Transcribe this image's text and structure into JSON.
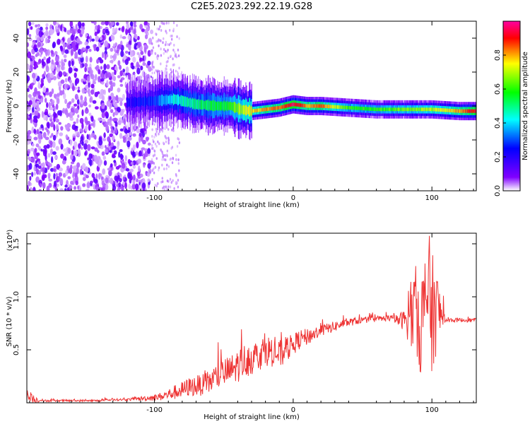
{
  "title": "C2E5.2023.292.22.19.G28",
  "chart_data": [
    {
      "type": "heatmap",
      "xlabel": "Height of straight line (km)",
      "ylabel": "Frequency (Hz)",
      "xlim": [
        -192,
        132
      ],
      "ylim": [
        -50,
        50
      ],
      "x_ticks": [
        -100,
        0,
        100
      ],
      "x_tick_labels": [
        "-100",
        "0",
        "100"
      ],
      "y_ticks": [
        -40,
        -20,
        0,
        20,
        40
      ],
      "y_tick_labels": [
        "-40",
        "-20",
        "0",
        "20",
        "40"
      ],
      "colorbar": {
        "label": "Normalized spectral amplitude",
        "range": [
          0,
          1
        ],
        "ticks": [
          0.0,
          0.2,
          0.4,
          0.6,
          0.8
        ],
        "tick_labels": [
          "0.0",
          "0.2",
          "0.4",
          "0.6",
          "0.8"
        ],
        "colors": [
          "#ffffff",
          "#8000ff",
          "#0000ff",
          "#00ffff",
          "#00ff00",
          "#ffff00",
          "#ff0000",
          "#ff00a0"
        ]
      },
      "ridge": {
        "x": [
          -120,
          -100,
          -85,
          -70,
          -55,
          -45,
          -38,
          -30,
          -20,
          -10,
          0,
          10,
          20,
          40,
          60,
          80,
          100,
          120,
          132
        ],
        "frequency_hz": [
          2,
          3,
          4,
          1,
          0,
          0,
          -2,
          -3,
          -2,
          -1,
          1,
          0,
          0,
          -1,
          -2,
          -2,
          -2,
          -3,
          -3
        ],
        "amplitude": [
          0.2,
          0.3,
          0.45,
          0.5,
          0.55,
          0.6,
          0.7,
          0.75,
          0.8,
          0.85,
          0.95,
          0.8,
          0.85,
          0.6,
          0.6,
          0.65,
          0.7,
          0.8,
          0.95
        ]
      },
      "grid": false
    },
    {
      "type": "line",
      "xlabel": "Height of straight line (km)",
      "ylabel": "SNR (10 * v/v)",
      "y_multiplier": "(x10⁴)",
      "xlim": [
        -192,
        132
      ],
      "ylim": [
        0,
        1.6
      ],
      "x_ticks": [
        -100,
        0,
        100
      ],
      "x_tick_labels": [
        "-100",
        "0",
        "100"
      ],
      "y_ticks": [
        0.5,
        1.0,
        1.5
      ],
      "y_tick_labels": [
        "0.5",
        "1.0",
        "1.5"
      ],
      "series": [
        {
          "color": "#ee3333",
          "x": [
            -192,
            -185,
            -180,
            -170,
            -160,
            -150,
            -140,
            -130,
            -120,
            -110,
            -100,
            -95,
            -90,
            -85,
            -80,
            -75,
            -70,
            -65,
            -60,
            -55,
            -50,
            -45,
            -40,
            -35,
            -30,
            -25,
            -20,
            -15,
            -10,
            -5,
            0,
            5,
            10,
            15,
            20,
            25,
            30,
            35,
            40,
            50,
            60,
            70,
            75,
            80,
            85,
            88,
            90,
            92,
            95,
            97,
            100,
            102,
            105,
            110,
            120,
            132
          ],
          "values": [
            0.05,
            0.03,
            0.02,
            0.02,
            0.02,
            0.02,
            0.02,
            0.03,
            0.03,
            0.04,
            0.05,
            0.06,
            0.08,
            0.1,
            0.12,
            0.15,
            0.16,
            0.17,
            0.2,
            0.25,
            0.28,
            0.3,
            0.35,
            0.4,
            0.42,
            0.45,
            0.5,
            0.48,
            0.45,
            0.5,
            0.55,
            0.6,
            0.62,
            0.65,
            0.68,
            0.7,
            0.72,
            0.74,
            0.76,
            0.78,
            0.79,
            0.8,
            0.78,
            0.78,
            0.8,
            0.9,
            0.85,
            0.7,
            0.9,
            1.1,
            0.8,
            0.9,
            0.85,
            0.78,
            0.78,
            0.78
          ],
          "noise_amplitude": [
            0.05,
            0.03,
            0.01,
            0.01,
            0.01,
            0.01,
            0.01,
            0.01,
            0.01,
            0.02,
            0.03,
            0.04,
            0.05,
            0.07,
            0.08,
            0.09,
            0.1,
            0.1,
            0.12,
            0.13,
            0.14,
            0.15,
            0.16,
            0.16,
            0.16,
            0.15,
            0.15,
            0.14,
            0.14,
            0.12,
            0.1,
            0.09,
            0.08,
            0.07,
            0.06,
            0.05,
            0.05,
            0.04,
            0.04,
            0.03,
            0.03,
            0.03,
            0.05,
            0.1,
            0.3,
            0.4,
            0.45,
            0.5,
            0.55,
            0.6,
            0.6,
            0.5,
            0.3,
            0.02,
            0.02,
            0.02
          ]
        }
      ],
      "grid": false
    }
  ]
}
